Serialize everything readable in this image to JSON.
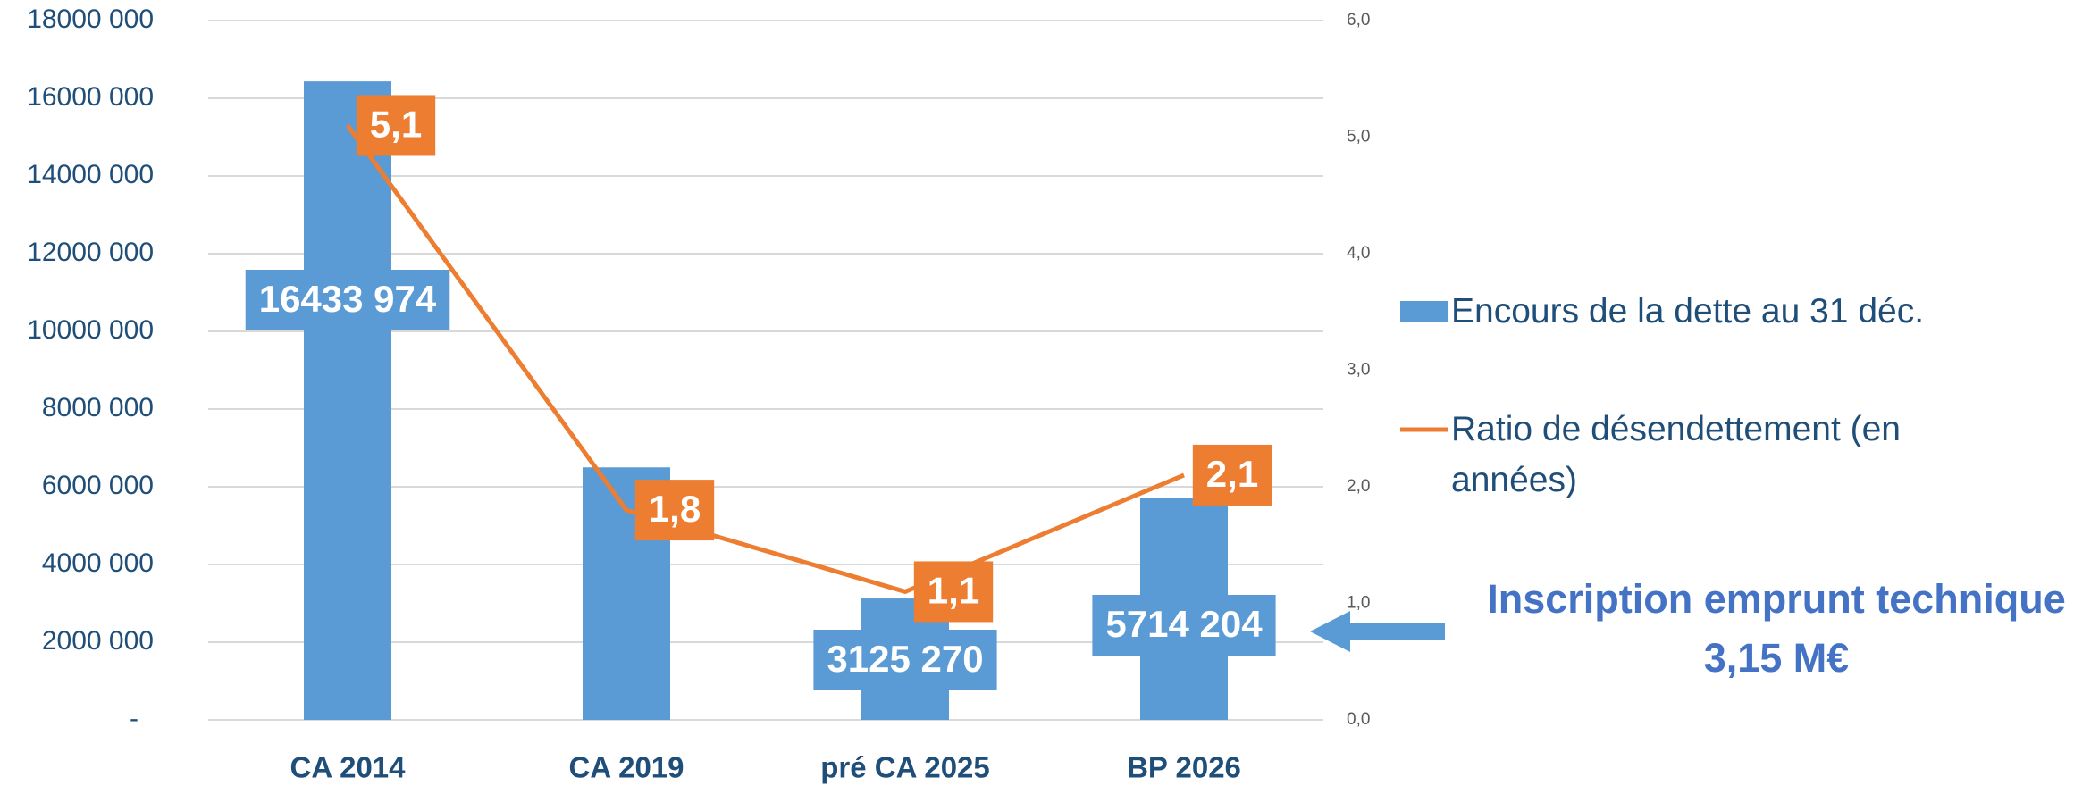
{
  "chart_data": {
    "type": "bar_line",
    "categories": [
      "CA 2014",
      "CA 2019",
      "pré CA 2025",
      "BP 2026"
    ],
    "series": [
      {
        "name": "Encours de la dette au 31 déc.",
        "type": "bar",
        "color": "#5b9bd5",
        "values": [
          16433974,
          6500000,
          3125270,
          5714204
        ],
        "value_labels": [
          "16433 974",
          null,
          "3125 270",
          "5714 204"
        ]
      },
      {
        "name": "Ratio de désendettement (en années)",
        "type": "line",
        "axis": "y2",
        "color": "#ed7d31",
        "values": [
          5.1,
          1.8,
          1.1,
          2.1
        ],
        "value_labels": [
          "5,1",
          "1,8",
          "1,1",
          "2,1"
        ]
      }
    ],
    "ylim": [
      0,
      18000000
    ],
    "yticks": [
      {
        "value": 0,
        "label": "-"
      },
      {
        "value": 2000000,
        "label": "2000 000"
      },
      {
        "value": 4000000,
        "label": "4000 000"
      },
      {
        "value": 6000000,
        "label": "6000 000"
      },
      {
        "value": 8000000,
        "label": "8000 000"
      },
      {
        "value": 10000000,
        "label": "10000 000"
      },
      {
        "value": 12000000,
        "label": "12000 000"
      },
      {
        "value": 14000000,
        "label": "14000 000"
      },
      {
        "value": 16000000,
        "label": "16000 000"
      },
      {
        "value": 18000000,
        "label": "18000 000"
      }
    ],
    "y2lim": [
      0,
      6
    ],
    "y2ticks": [
      {
        "value": 0,
        "label": "0,0"
      },
      {
        "value": 1,
        "label": "1,0"
      },
      {
        "value": 2,
        "label": "2,0"
      },
      {
        "value": 3,
        "label": "3,0"
      },
      {
        "value": 4,
        "label": "4,0"
      },
      {
        "value": 5,
        "label": "5,0"
      },
      {
        "value": 6,
        "label": "6,0"
      }
    ],
    "grid": true,
    "legend": "right",
    "annotation": [
      "Inscription emprunt technique",
      "3,15 M€"
    ]
  }
}
